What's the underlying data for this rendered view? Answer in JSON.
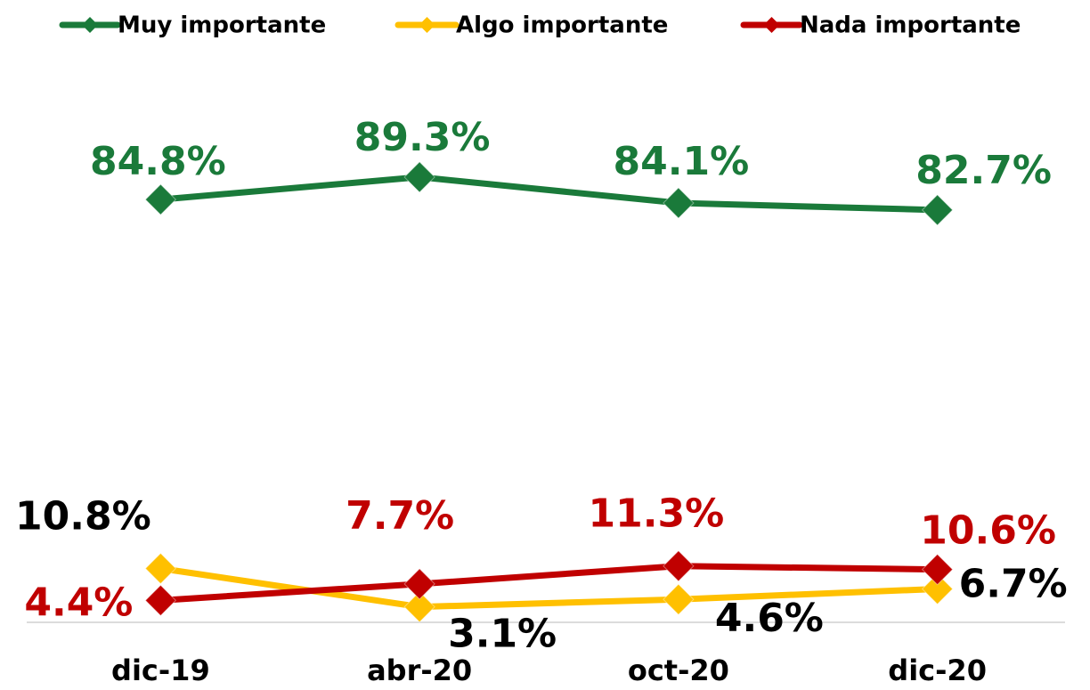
{
  "chart_data": {
    "type": "line",
    "categories": [
      "dic-19",
      "abr-20",
      "oct-20",
      "dic-20"
    ],
    "ylim": [
      0,
      100
    ],
    "series": [
      {
        "name": "Muy importante",
        "color": "#1a7a3a",
        "label_color": "#1a7a3a",
        "values": [
          84.8,
          89.3,
          84.1,
          82.7
        ],
        "value_labels": [
          "84.8%",
          "89.3%",
          "84.1%",
          "82.7%"
        ]
      },
      {
        "name": "Algo importante",
        "color": "#ffc000",
        "label_color": "#000000",
        "values": [
          10.8,
          3.1,
          4.6,
          6.7
        ],
        "value_labels": [
          "10.8%",
          "3.1%",
          "4.6%",
          "6.7%"
        ]
      },
      {
        "name": "Nada importante",
        "color": "#c00000",
        "label_color": "#c00000",
        "values": [
          4.4,
          7.7,
          11.3,
          10.6
        ],
        "value_labels": [
          "4.4%",
          "7.7%",
          "11.3%",
          "10.6%"
        ]
      }
    ]
  }
}
